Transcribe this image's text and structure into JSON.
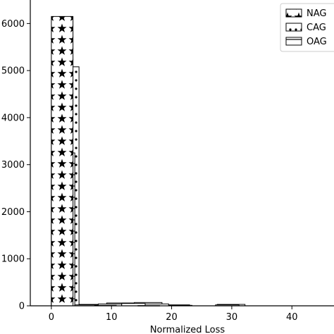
{
  "chart_data": {
    "type": "bar",
    "xlabel": "Normalized Loss",
    "ylabel": "",
    "xlim": [
      -3.5,
      47
    ],
    "ylim": [
      0,
      6500
    ],
    "x_ticks": [
      0,
      10,
      20,
      30,
      40
    ],
    "y_ticks": [
      0,
      1000,
      2000,
      3000,
      4000,
      5000,
      6000
    ],
    "legend_placement": "top-right",
    "legend_labels": [
      "NAG",
      "CAG",
      "OAG"
    ],
    "series": [
      {
        "name": "NAG",
        "hatch": "stars",
        "bins": [
          {
            "x0": 0,
            "x1": 3.6,
            "value": 6150
          },
          {
            "x0": 7.2,
            "x1": 10.8,
            "value": 10
          },
          {
            "x0": 14.4,
            "x1": 18.0,
            "value": 5
          }
        ]
      },
      {
        "name": "CAG",
        "hatch": "dots",
        "bins": [
          {
            "x0": 0,
            "x1": 4.6,
            "value": 5080
          },
          {
            "x0": 4.6,
            "x1": 9.2,
            "value": 30
          },
          {
            "x0": 9.2,
            "x1": 13.8,
            "value": 60
          },
          {
            "x0": 13.8,
            "x1": 18.4,
            "value": 70
          },
          {
            "x0": 18.4,
            "x1": 23.0,
            "value": 20
          },
          {
            "x0": 27.6,
            "x1": 32.2,
            "value": 30
          }
        ]
      },
      {
        "name": "OAG",
        "hatch": "horizontal",
        "bins": [
          {
            "x0": 0,
            "x1": 3.9,
            "value": 3250
          },
          {
            "x0": 3.9,
            "x1": 7.8,
            "value": 20
          },
          {
            "x0": 7.8,
            "x1": 11.7,
            "value": 40
          },
          {
            "x0": 11.7,
            "x1": 15.6,
            "value": 50
          },
          {
            "x0": 15.6,
            "x1": 19.5,
            "value": 40
          },
          {
            "x0": 19.5,
            "x1": 23.4,
            "value": 10
          },
          {
            "x0": 27.3,
            "x1": 31.2,
            "value": 20
          }
        ]
      }
    ]
  }
}
